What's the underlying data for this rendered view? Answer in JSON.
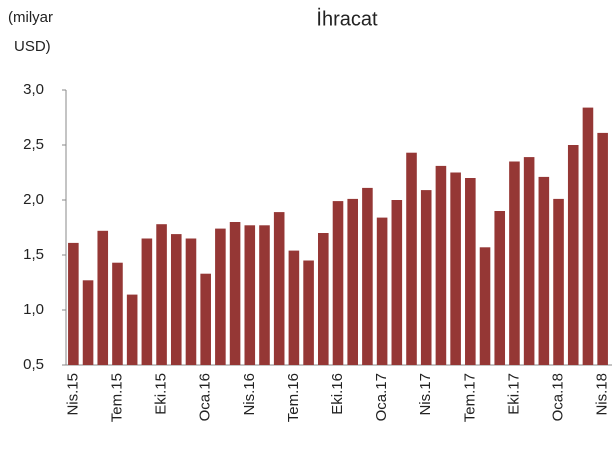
{
  "chart_data": {
    "type": "bar",
    "title": "İhracat",
    "y_label": [
      "(milyar",
      "USD)"
    ],
    "categories": [
      "Nis.15",
      null,
      null,
      "Tem.15",
      null,
      null,
      "Eki.15",
      null,
      null,
      "Oca.16",
      null,
      null,
      "Nis.16",
      null,
      null,
      "Tem.16",
      null,
      null,
      "Eki.16",
      null,
      null,
      "Oca.17",
      null,
      null,
      "Nis.17",
      null,
      null,
      "Tem.17",
      null,
      null,
      "Eki.17",
      null,
      null,
      "Oca.18",
      null,
      null,
      "Nis.18"
    ],
    "values": [
      1.61,
      1.27,
      1.72,
      1.43,
      1.14,
      1.65,
      1.78,
      1.69,
      1.65,
      1.33,
      1.74,
      1.8,
      1.77,
      1.77,
      1.89,
      1.54,
      1.45,
      1.7,
      1.99,
      2.01,
      2.11,
      1.84,
      2.0,
      2.43,
      2.09,
      2.31,
      2.25,
      2.2,
      1.57,
      1.9,
      2.35,
      2.39,
      2.21,
      2.01,
      2.5,
      2.84,
      2.61
    ],
    "color": "#953735",
    "ylim": [
      0.5,
      3.0
    ],
    "yticks": [
      {
        "value": 0.5,
        "label": "0,5"
      },
      {
        "value": 1.0,
        "label": "1,0"
      },
      {
        "value": 1.5,
        "label": "1,5"
      },
      {
        "value": 2.0,
        "label": "2,0"
      },
      {
        "value": 2.5,
        "label": "2,5"
      },
      {
        "value": 3.0,
        "label": "3,0"
      }
    ],
    "grid": false
  }
}
